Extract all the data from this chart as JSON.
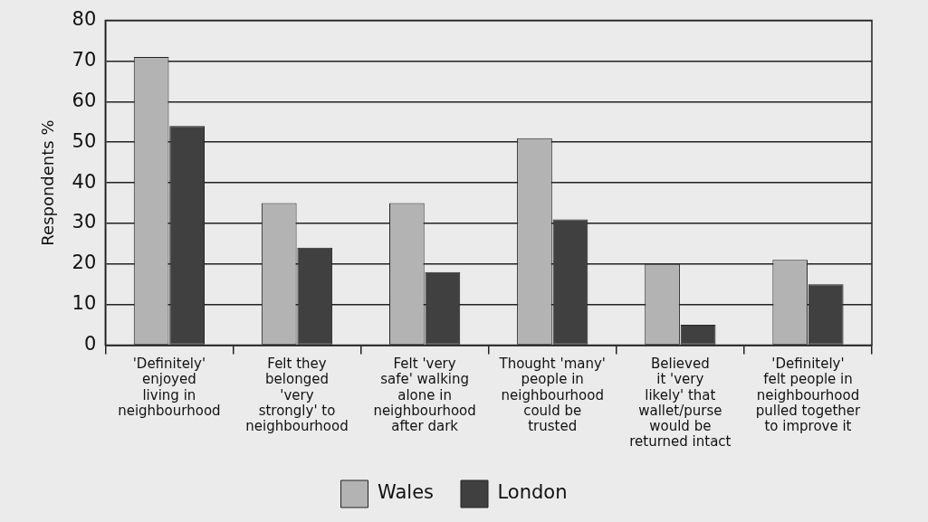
{
  "chart_data": {
    "type": "bar",
    "ylabel": "Respondents %",
    "categories": [
      "'Definitely'\nenjoyed\nliving in\nneighbourhood",
      "Felt they\nbelonged\n'very\nstrongly' to\nneighbourhood",
      "Felt 'very\nsafe' walking\nalone in\nneighbourhood\nafter dark",
      "Thought 'many'\npeople in\nneighbourhood\ncould be\ntrusted",
      "Believed\nit 'very\nlikely' that\nwallet/purse\nwould be\nreturned intact",
      "'Definitely'\nfelt people in\nneighbourhood\npulled together\nto improve it"
    ],
    "series": [
      {
        "name": "Wales",
        "color": "#b3b3b3",
        "values": [
          71,
          35,
          35,
          51,
          20,
          21
        ]
      },
      {
        "name": "London",
        "color": "#404040",
        "values": [
          54,
          24,
          18,
          31,
          5,
          15
        ]
      }
    ],
    "ylim": [
      0,
      80
    ],
    "yticks": [
      0,
      10,
      20,
      30,
      40,
      50,
      60,
      70,
      80
    ],
    "grid": "y",
    "legend": "bottom"
  }
}
